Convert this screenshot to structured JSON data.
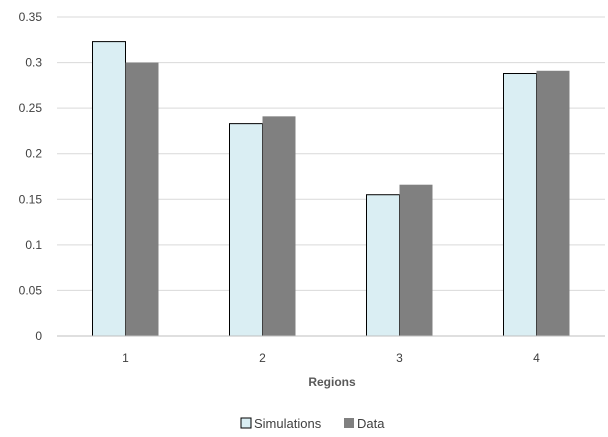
{
  "chart_data": {
    "type": "bar",
    "title": "",
    "xlabel": "Regions",
    "ylabel": "",
    "categories": [
      "1",
      "2",
      "3",
      "4"
    ],
    "series": [
      {
        "name": "Simulations",
        "values": [
          0.323,
          0.233,
          0.155,
          0.288
        ],
        "color": "#DAEEF3"
      },
      {
        "name": "Data",
        "values": [
          0.3,
          0.241,
          0.166,
          0.291
        ],
        "color": "#808080"
      }
    ],
    "ylim": [
      0,
      0.35
    ],
    "yticks": [
      "0",
      "0.05",
      "0.1",
      "0.15",
      "0.2",
      "0.25",
      "0.3",
      "0.35"
    ],
    "grid": true,
    "legend_position": "bottom"
  },
  "colors": {
    "gridline": "#d9d9d9",
    "bar_outline": "#000000",
    "axis_line": "#bfbfbf"
  }
}
